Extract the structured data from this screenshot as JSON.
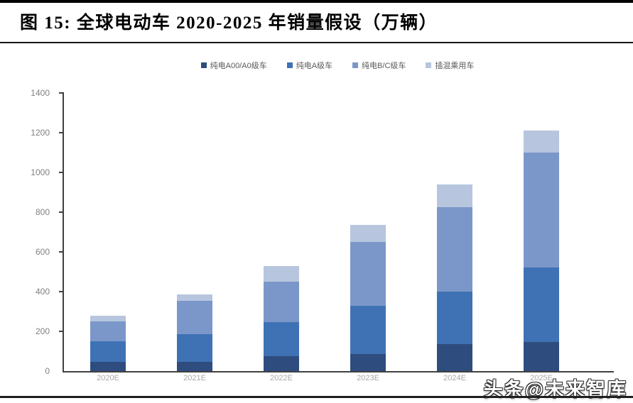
{
  "page": {
    "title": "图 15:  全球电动车 2020-2025 年销量假设（万辆）",
    "watermark": "头条@未来智库"
  },
  "chart_data": {
    "type": "bar",
    "stacked": true,
    "title": "全球电动车2020-2025年销量假设（万辆）",
    "categories": [
      "2020E",
      "2021E",
      "2022E",
      "2023E",
      "2024E",
      "2025E"
    ],
    "series": [
      {
        "name": "纯电A00/A0级车",
        "color": "#2e4d7e",
        "values": [
          45,
          45,
          75,
          85,
          135,
          145
        ]
      },
      {
        "name": "纯电A级车",
        "color": "#3f72b4",
        "values": [
          105,
          140,
          170,
          245,
          265,
          375
        ]
      },
      {
        "name": "纯电B/C级车",
        "color": "#7b97c9",
        "values": [
          100,
          170,
          205,
          320,
          425,
          580
        ]
      },
      {
        "name": "插混乘用车",
        "color": "#b7c6de",
        "values": [
          30,
          30,
          80,
          85,
          115,
          110
        ]
      }
    ],
    "totals": [
      280,
      385,
      530,
      735,
      940,
      1210
    ],
    "xlabel": "",
    "ylabel": "",
    "ylim": [
      0,
      1400
    ],
    "ytick_step": 200,
    "grid": false,
    "legend_position": "top",
    "axis_color": "#404040",
    "ytick_label_color": "#808080",
    "xtick_label_color": "#a8a8a8",
    "legend_label_color": "#595959"
  }
}
